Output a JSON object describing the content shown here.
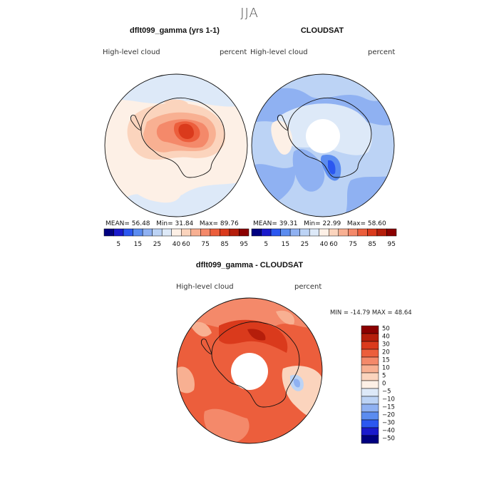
{
  "figure": {
    "season": "JJA"
  },
  "panels": {
    "model": {
      "title": "dflt099_gamma (yrs 1-1)",
      "left_label": "High-level cloud",
      "right_label": "percent",
      "stats": {
        "mean_label": "MEAN=",
        "mean": "56.48",
        "min_label": "Min=",
        "min": "31.84",
        "max_label": "Max=",
        "max": "89.76"
      }
    },
    "obs": {
      "title": "CLOUDSAT",
      "left_label": "High-level cloud",
      "right_label": "percent",
      "stats": {
        "mean_label": "MEAN=",
        "mean": "39.31",
        "min_label": "Min=",
        "min": "22.99",
        "max_label": "Max=",
        "max": "58.60"
      }
    },
    "diff": {
      "title": "dflt099_gamma - CLOUDSAT",
      "left_label": "High-level cloud",
      "right_label": "percent",
      "minmax_text": "MIN = -14.79  MAX =  48.64"
    }
  },
  "colorbar_abs": {
    "labels": [
      "5",
      "15",
      "25",
      "40",
      "60",
      "75",
      "85",
      "95"
    ],
    "colors": [
      "#000080",
      "#1a1acc",
      "#2b57f0",
      "#5b8cf0",
      "#8fb1f2",
      "#bcd3f5",
      "#dde9f8",
      "#fdf0e6",
      "#fbd4bd",
      "#f8b092",
      "#f4896a",
      "#ec5e3c",
      "#da3a1c",
      "#b51e0b",
      "#8b0000"
    ]
  },
  "colorbar_diff": {
    "labels": [
      "50",
      "40",
      "30",
      "20",
      "15",
      "10",
      "5",
      "0",
      "−5",
      "−10",
      "−15",
      "−20",
      "−30",
      "−40",
      "−50"
    ],
    "colors": [
      "#8b0000",
      "#b51e0b",
      "#da3a1c",
      "#ec5e3c",
      "#f4896a",
      "#f8b092",
      "#fbd4bd",
      "#fdf0e6",
      "#dde9f8",
      "#bcd3f5",
      "#8fb1f2",
      "#5b8cf0",
      "#2b57f0",
      "#1a1acc",
      "#000080"
    ]
  }
}
